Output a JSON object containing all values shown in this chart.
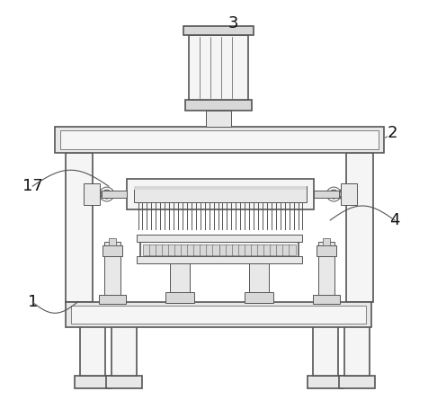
{
  "background_color": "#ffffff",
  "line_color": "#555555",
  "light_fill": "#f5f5f5",
  "mid_fill": "#e8e8e8",
  "dark_fill": "#d8d8d8",
  "label_color": "#111111",
  "fig_w": 4.86,
  "fig_h": 4.55,
  "dpi": 100
}
